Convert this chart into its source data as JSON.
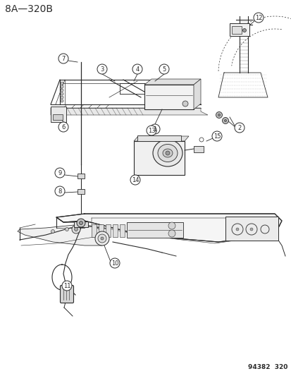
{
  "title": "8A—320B",
  "footer": "94382  320",
  "bg_color": "#ffffff",
  "line_color": "#2a2a2a",
  "title_fontsize": 10,
  "footer_fontsize": 6.5
}
